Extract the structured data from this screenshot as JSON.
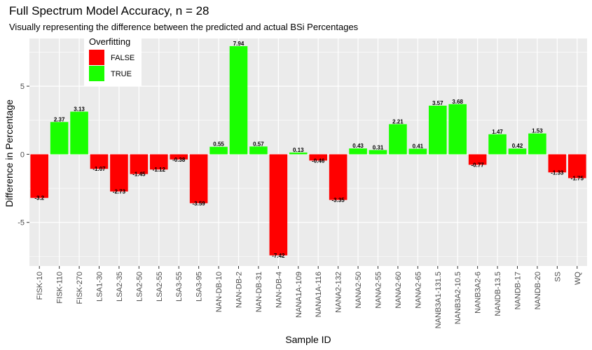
{
  "chart_data": {
    "type": "bar",
    "title": "Full Spectrum Model Accuracy, n = 28",
    "subtitle": "Visually representing the difference between the predicted and actual BSi Percentages",
    "xlabel": "Sample ID",
    "ylabel": "Difference in Percentage",
    "ylim": [
      -8.2,
      8.5
    ],
    "yticks": [
      -5,
      0,
      5
    ],
    "ytick_labels": [
      "-5",
      "0",
      "5"
    ],
    "grid": true,
    "legend": {
      "title": "Overfitting",
      "placement": "top-left",
      "entries": [
        {
          "label": "FALSE",
          "color": "#ff0000"
        },
        {
          "label": "TRUE",
          "color": "#1aff00"
        }
      ]
    },
    "categories": [
      "FISK-10",
      "FISK-110",
      "FISK-270",
      "LSA1-30",
      "LSA2-35",
      "LSA2-50",
      "LSA2-55",
      "LSA3-55",
      "LSA3-95",
      "NAN-DB-10",
      "NAN-DB-2",
      "NAN-DB-31",
      "NAN-DB-4",
      "NANA1A-109",
      "NANA1A-116",
      "NANA2-132",
      "NANA2-50",
      "NANA2-55",
      "NANA2-60",
      "NANA2-65",
      "NANB3A1-131.5",
      "NANB3A2-10.5",
      "NANB3A2-6",
      "NANDB-13.5",
      "NANDB-17",
      "NANDB-20",
      "SS",
      "WQ"
    ],
    "values": [
      -3.2,
      2.37,
      3.13,
      -1.07,
      -2.73,
      -1.45,
      -1.12,
      -0.38,
      -3.59,
      0.55,
      7.94,
      0.57,
      -7.42,
      0.13,
      -0.46,
      -3.35,
      0.43,
      0.31,
      2.21,
      0.41,
      3.57,
      3.68,
      -0.77,
      1.47,
      0.42,
      1.53,
      -1.33,
      -1.75
    ],
    "value_labels": [
      "-3.2",
      "2.37",
      "3.13",
      "-1.07",
      "-2.73",
      "-1.45",
      "-1.12",
      "-0.38",
      "-3.59",
      "0.55",
      "7.94",
      "0.57",
      "-7.42",
      "0.13",
      "-0.46",
      "-3.35",
      "0.43",
      "0.31",
      "2.21",
      "0.41",
      "3.57",
      "3.68",
      "-0.77",
      "1.47",
      "0.42",
      "1.53",
      "-1.33",
      "-1.75"
    ],
    "overfitting": [
      false,
      true,
      true,
      false,
      false,
      false,
      false,
      false,
      false,
      true,
      true,
      true,
      false,
      true,
      false,
      false,
      true,
      true,
      true,
      true,
      true,
      true,
      false,
      true,
      true,
      true,
      false,
      false
    ],
    "colors": {
      "false": "#ff0000",
      "true": "#1aff00",
      "panel": "#ebebeb",
      "grid": "#ffffff"
    }
  }
}
